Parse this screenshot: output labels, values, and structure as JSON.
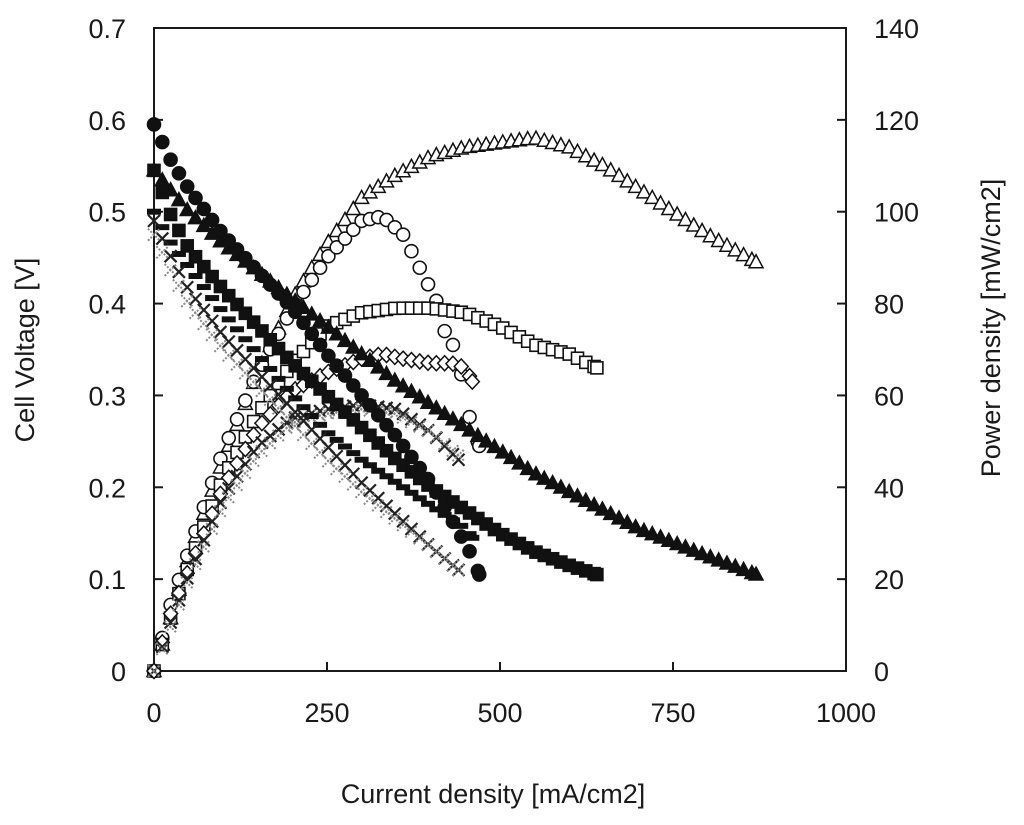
{
  "chart_data": {
    "type": "scatter",
    "title": "",
    "xlabel": "Current density [mA/cm2]",
    "ylabel": "Cell Voltage [V]",
    "y2label": "Power density [mW/cm2]",
    "xlim": [
      0,
      1000
    ],
    "ylim": [
      0,
      0.7
    ],
    "y2lim": [
      0,
      140
    ],
    "x_ticks": [
      "0",
      "250",
      "500",
      "750",
      "1000"
    ],
    "y_ticks": [
      "0",
      "0.1",
      "0.2",
      "0.3",
      "0.4",
      "0.5",
      "0.6",
      "0.7"
    ],
    "y2_ticks": [
      "0",
      "20",
      "40",
      "60",
      "80",
      "100",
      "120",
      "140"
    ],
    "grid": false,
    "legend": "none",
    "series": [
      {
        "marker": "triangle",
        "filled": true,
        "axis": "left",
        "x": [
          0,
          50,
          100,
          150,
          200,
          250,
          300,
          350,
          400,
          450,
          500,
          550,
          600,
          650,
          700,
          750,
          800,
          870
        ],
        "values": [
          0.545,
          0.5,
          0.465,
          0.435,
          0.405,
          0.375,
          0.345,
          0.315,
          0.29,
          0.265,
          0.24,
          0.215,
          0.195,
          0.175,
          0.155,
          0.14,
          0.125,
          0.105
        ]
      },
      {
        "marker": "triangle",
        "filled": false,
        "axis": "right",
        "x": [
          0,
          25,
          50,
          100,
          150,
          200,
          250,
          300,
          350,
          400,
          450,
          500,
          550,
          600,
          650,
          700,
          750,
          800,
          870
        ],
        "values": [
          0,
          12,
          25,
          46,
          65,
          81,
          93,
          103,
          108,
          112,
          114,
          115,
          116,
          114,
          110,
          105,
          100,
          95,
          89
        ]
      },
      {
        "marker": "circle",
        "filled": true,
        "axis": "left",
        "x": [
          0,
          25,
          50,
          100,
          150,
          200,
          250,
          300,
          350,
          400,
          430,
          460,
          470
        ],
        "values": [
          0.595,
          0.555,
          0.525,
          0.475,
          0.435,
          0.395,
          0.345,
          0.3,
          0.255,
          0.205,
          0.165,
          0.125,
          0.105
        ]
      },
      {
        "marker": "circle",
        "filled": false,
        "axis": "right",
        "x": [
          0,
          25,
          50,
          100,
          150,
          200,
          250,
          300,
          330,
          360,
          390,
          410,
          420,
          440,
          450,
          470
        ],
        "values": [
          0,
          15,
          26,
          48,
          65,
          79,
          90,
          98,
          99,
          95,
          86,
          80,
          74,
          69,
          58,
          49
        ]
      },
      {
        "marker": "square",
        "filled": true,
        "axis": "left",
        "x": [
          0,
          25,
          50,
          100,
          150,
          200,
          250,
          300,
          350,
          400,
          450,
          500,
          550,
          600,
          640
        ],
        "values": [
          0.545,
          0.495,
          0.46,
          0.415,
          0.375,
          0.335,
          0.3,
          0.265,
          0.23,
          0.2,
          0.175,
          0.15,
          0.13,
          0.115,
          0.105
        ]
      },
      {
        "marker": "square",
        "filled": false,
        "axis": "right",
        "x": [
          0,
          25,
          50,
          100,
          150,
          200,
          250,
          300,
          350,
          400,
          450,
          500,
          550,
          600,
          640
        ],
        "values": [
          0,
          12,
          23,
          42,
          56,
          67,
          75,
          78,
          79,
          79,
          78,
          75,
          71,
          69,
          66
        ]
      },
      {
        "marker": "dash",
        "filled": true,
        "axis": "left",
        "x": [
          0,
          25,
          50,
          100,
          150,
          200,
          250,
          300,
          350,
          400,
          450,
          460
        ],
        "values": [
          0.5,
          0.465,
          0.44,
          0.39,
          0.345,
          0.3,
          0.26,
          0.23,
          0.205,
          0.18,
          0.155,
          0.145
        ]
      },
      {
        "marker": "diamond",
        "filled": false,
        "axis": "right",
        "x": [
          0,
          25,
          50,
          100,
          150,
          200,
          250,
          300,
          330,
          360,
          400,
          430,
          450,
          460
        ],
        "values": [
          0,
          13,
          22,
          40,
          53,
          61,
          65,
          68,
          69,
          68,
          67,
          67,
          66,
          63
        ]
      },
      {
        "marker": "x",
        "filled": true,
        "axis": "left",
        "x": [
          0,
          25,
          50,
          100,
          150,
          200,
          250,
          300,
          350,
          400,
          440
        ],
        "values": [
          0.49,
          0.45,
          0.415,
          0.365,
          0.325,
          0.285,
          0.245,
          0.205,
          0.17,
          0.135,
          0.11
        ]
      },
      {
        "marker": "x",
        "filled": false,
        "axis": "right",
        "x": [
          0,
          25,
          50,
          100,
          150,
          200,
          250,
          300,
          350,
          400,
          440
        ],
        "values": [
          0,
          11,
          21,
          38,
          49,
          55,
          57,
          58,
          57,
          52,
          46
        ]
      },
      {
        "marker": "cross-gray",
        "filled": true,
        "axis": "left",
        "x": [
          0,
          25,
          50,
          100,
          150,
          200,
          250,
          300,
          350,
          400,
          440
        ],
        "values": [
          0.475,
          0.435,
          0.4,
          0.35,
          0.31,
          0.27,
          0.23,
          0.195,
          0.165,
          0.135,
          0.11
        ]
      },
      {
        "marker": "cross-gray",
        "filled": false,
        "axis": "right",
        "x": [
          0,
          25,
          50,
          100,
          150,
          200,
          250,
          300,
          350,
          400,
          440
        ],
        "values": [
          0,
          10,
          20,
          36,
          47,
          54,
          56,
          57,
          56,
          52,
          47
        ]
      }
    ]
  }
}
